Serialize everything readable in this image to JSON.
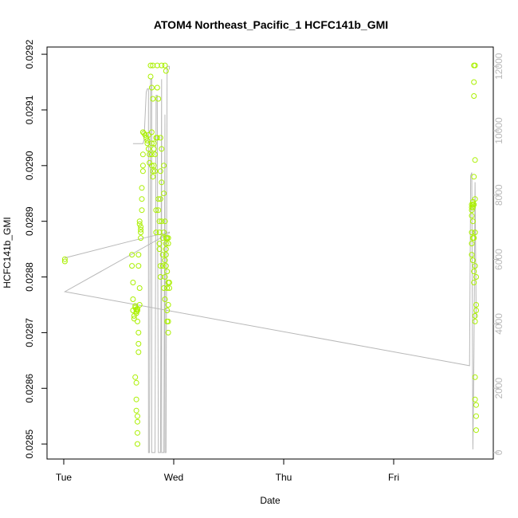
{
  "chart_data": {
    "type": "scatter",
    "title": "ATOM4 Northeast_Pacific_1 HCFC141b_GMI",
    "xlabel": "Date",
    "ylabel": "HCFC141b_GMI",
    "xlim": [
      0,
      3.93
    ],
    "ylim": [
      0.028473,
      0.029213
    ],
    "y2lim": [
      -200,
      12600
    ],
    "x_ticks": [
      {
        "value": 0,
        "label": "Tue"
      },
      {
        "value": 1,
        "label": "Wed"
      },
      {
        "value": 2,
        "label": "Thu"
      },
      {
        "value": 3,
        "label": "Fri"
      }
    ],
    "y_ticks": [
      {
        "value": 0.0285,
        "label": "0.0285"
      },
      {
        "value": 0.0286,
        "label": "0.0286"
      },
      {
        "value": 0.0287,
        "label": "0.0287"
      },
      {
        "value": 0.0288,
        "label": "0.0288"
      },
      {
        "value": 0.0289,
        "label": "0.0289"
      },
      {
        "value": 0.029,
        "label": "0.0290"
      },
      {
        "value": 0.0291,
        "label": "0.0291"
      },
      {
        "value": 0.0292,
        "label": "0.0292"
      }
    ],
    "y2_ticks": [
      {
        "value": 0,
        "label": "0"
      },
      {
        "value": 2000,
        "label": "2000"
      },
      {
        "value": 4000,
        "label": "4000"
      },
      {
        "value": 6000,
        "label": "6000"
      },
      {
        "value": 8000,
        "label": "8000"
      },
      {
        "value": 10000,
        "label": "10000"
      },
      {
        "value": 12000,
        "label": "12000"
      }
    ],
    "grid": false,
    "colors": {
      "points": "#aaf000",
      "line": "#b8b8b8",
      "right_axis": "#b8b8b8"
    },
    "series": [
      {
        "role": "concentration",
        "marker": "open-circle",
        "points": [
          [
            0.01,
            0.028832
          ],
          [
            0.01,
            0.028828
          ],
          [
            0.62,
            0.02884
          ],
          [
            0.62,
            0.02882
          ],
          [
            0.63,
            0.02879
          ],
          [
            0.63,
            0.02876
          ],
          [
            0.63,
            0.02874
          ],
          [
            0.64,
            0.02873
          ],
          [
            0.64,
            0.028725
          ],
          [
            0.65,
            0.028748
          ],
          [
            0.65,
            0.028745
          ],
          [
            0.66,
            0.028742
          ],
          [
            0.66,
            0.028738
          ],
          [
            0.66,
            0.028735
          ],
          [
            0.67,
            0.028743
          ],
          [
            0.67,
            0.02874
          ],
          [
            0.67,
            0.02872
          ],
          [
            0.68,
            0.0287
          ],
          [
            0.68,
            0.02868
          ],
          [
            0.68,
            0.028665
          ],
          [
            0.65,
            0.02862
          ],
          [
            0.66,
            0.02861
          ],
          [
            0.66,
            0.02858
          ],
          [
            0.66,
            0.02856
          ],
          [
            0.67,
            0.02855
          ],
          [
            0.67,
            0.02854
          ],
          [
            0.67,
            0.02852
          ],
          [
            0.67,
            0.0285
          ],
          [
            0.68,
            0.02884
          ],
          [
            0.68,
            0.02882
          ],
          [
            0.69,
            0.02878
          ],
          [
            0.69,
            0.02875
          ],
          [
            0.69,
            0.0289
          ],
          [
            0.69,
            0.028895
          ],
          [
            0.7,
            0.02889
          ],
          [
            0.7,
            0.028885
          ],
          [
            0.7,
            0.02888
          ],
          [
            0.7,
            0.02887
          ],
          [
            0.71,
            0.02896
          ],
          [
            0.71,
            0.02894
          ],
          [
            0.71,
            0.02892
          ],
          [
            0.72,
            0.02899
          ],
          [
            0.72,
            0.02902
          ],
          [
            0.72,
            0.029
          ],
          [
            0.72,
            0.02906
          ],
          [
            0.73,
            0.029058
          ],
          [
            0.74,
            0.029055
          ],
          [
            0.75,
            0.02905
          ],
          [
            0.76,
            0.029045
          ],
          [
            0.76,
            0.02904
          ],
          [
            0.77,
            0.029055
          ],
          [
            0.77,
            0.02903
          ],
          [
            0.78,
            0.02902
          ],
          [
            0.78,
            0.029005
          ],
          [
            0.79,
            0.02918
          ],
          [
            0.79,
            0.02916
          ],
          [
            0.8,
            0.02914
          ],
          [
            0.8,
            0.02906
          ],
          [
            0.8,
            0.02904
          ],
          [
            0.8,
            0.02902
          ],
          [
            0.8,
            0.029
          ],
          [
            0.81,
            0.02899
          ],
          [
            0.81,
            0.02898
          ],
          [
            0.81,
            0.02918
          ],
          [
            0.81,
            0.02912
          ],
          [
            0.82,
            0.02904
          ],
          [
            0.82,
            0.02903
          ],
          [
            0.82,
            0.029
          ],
          [
            0.83,
            0.02899
          ],
          [
            0.83,
            0.02902
          ],
          [
            0.84,
            0.02892
          ],
          [
            0.84,
            0.02888
          ],
          [
            0.84,
            0.02905
          ],
          [
            0.85,
            0.02918
          ],
          [
            0.85,
            0.02905
          ],
          [
            0.85,
            0.02914
          ],
          [
            0.86,
            0.02912
          ],
          [
            0.86,
            0.02894
          ],
          [
            0.86,
            0.02892
          ],
          [
            0.87,
            0.0289
          ],
          [
            0.87,
            0.02888
          ],
          [
            0.87,
            0.02886
          ],
          [
            0.87,
            0.02885
          ],
          [
            0.88,
            0.02905
          ],
          [
            0.88,
            0.02899
          ],
          [
            0.88,
            0.02894
          ],
          [
            0.88,
            0.02882
          ],
          [
            0.88,
            0.0288
          ],
          [
            0.89,
            0.02918
          ],
          [
            0.89,
            0.02903
          ],
          [
            0.89,
            0.02897
          ],
          [
            0.89,
            0.0289
          ],
          [
            0.9,
            0.02887
          ],
          [
            0.9,
            0.02884
          ],
          [
            0.9,
            0.02882
          ],
          [
            0.91,
            0.029
          ],
          [
            0.91,
            0.02895
          ],
          [
            0.91,
            0.02888
          ],
          [
            0.91,
            0.02878
          ],
          [
            0.92,
            0.0289
          ],
          [
            0.92,
            0.02883
          ],
          [
            0.92,
            0.0288
          ],
          [
            0.92,
            0.02876
          ],
          [
            0.92,
            0.02918
          ],
          [
            0.93,
            0.02917
          ],
          [
            0.93,
            0.02887
          ],
          [
            0.93,
            0.02886
          ],
          [
            0.93,
            0.02885
          ],
          [
            0.93,
            0.02884
          ],
          [
            0.93,
            0.02882
          ],
          [
            0.94,
            0.02887
          ],
          [
            0.94,
            0.02881
          ],
          [
            0.94,
            0.02878
          ],
          [
            0.94,
            0.02874
          ],
          [
            0.94,
            0.02872
          ],
          [
            0.95,
            0.02887
          ],
          [
            0.95,
            0.02886
          ],
          [
            0.95,
            0.02879
          ],
          [
            0.95,
            0.02875
          ],
          [
            0.95,
            0.02872
          ],
          [
            0.95,
            0.0287
          ],
          [
            0.96,
            0.02879
          ],
          [
            0.96,
            0.02878
          ],
          [
            3.71,
            0.02893
          ],
          [
            3.71,
            0.028925
          ],
          [
            3.71,
            0.02892
          ],
          [
            3.71,
            0.02891
          ],
          [
            3.71,
            0.02888
          ],
          [
            3.71,
            0.02886
          ],
          [
            3.71,
            0.02884
          ],
          [
            3.72,
            0.028935
          ],
          [
            3.72,
            0.02893
          ],
          [
            3.72,
            0.028925
          ],
          [
            3.72,
            0.0289
          ],
          [
            3.72,
            0.02887
          ],
          [
            3.72,
            0.02883
          ],
          [
            3.73,
            0.02918
          ],
          [
            3.73,
            0.02915
          ],
          [
            3.73,
            0.029125
          ],
          [
            3.73,
            0.02898
          ],
          [
            3.73,
            0.02893
          ],
          [
            3.73,
            0.02887
          ],
          [
            3.73,
            0.02881
          ],
          [
            3.73,
            0.02879
          ],
          [
            3.74,
            0.02918
          ],
          [
            3.74,
            0.02901
          ],
          [
            3.74,
            0.02894
          ],
          [
            3.74,
            0.02888
          ],
          [
            3.74,
            0.02882
          ],
          [
            3.74,
            0.02873
          ],
          [
            3.74,
            0.02872
          ],
          [
            3.74,
            0.02862
          ],
          [
            3.74,
            0.02858
          ],
          [
            3.75,
            0.0288
          ],
          [
            3.75,
            0.02875
          ],
          [
            3.75,
            0.02874
          ],
          [
            3.75,
            0.02857
          ],
          [
            3.75,
            0.02855
          ],
          [
            3.75,
            0.028525
          ]
        ]
      },
      {
        "role": "secondary",
        "axis": "right",
        "line_points": [
          [
            0.01,
            6050
          ],
          [
            0.62,
            6580
          ],
          [
            0.96,
            6850
          ],
          [
            0.96,
            6820
          ],
          [
            0.01,
            5000
          ],
          [
            3.69,
            2700
          ],
          [
            3.7,
            8600
          ],
          [
            3.71,
            8700
          ],
          [
            3.72,
            100
          ],
          [
            3.73,
            3000
          ],
          [
            3.74,
            8400
          ],
          [
            3.75,
            4200
          ]
        ],
        "step_path": [
          [
            0.63,
            9600
          ],
          [
            0.72,
            9600
          ],
          [
            0.73,
            9700
          ],
          [
            0.75,
            11200
          ],
          [
            0.76,
            11300
          ],
          [
            0.77,
            11300
          ],
          [
            0.77,
            0
          ],
          [
            0.78,
            0
          ],
          [
            0.79,
            11600
          ],
          [
            0.8,
            11600
          ],
          [
            0.8,
            0
          ],
          [
            0.83,
            0
          ],
          [
            0.84,
            11100
          ],
          [
            0.85,
            11100
          ],
          [
            0.86,
            0
          ],
          [
            0.88,
            0
          ],
          [
            0.89,
            11600
          ],
          [
            0.89,
            0
          ],
          [
            0.91,
            0
          ],
          [
            0.92,
            10500
          ],
          [
            0.92,
            0
          ],
          [
            0.93,
            0
          ],
          [
            0.94,
            12000
          ],
          [
            0.96,
            12000
          ],
          [
            0.96,
            11900
          ]
        ]
      }
    ]
  }
}
